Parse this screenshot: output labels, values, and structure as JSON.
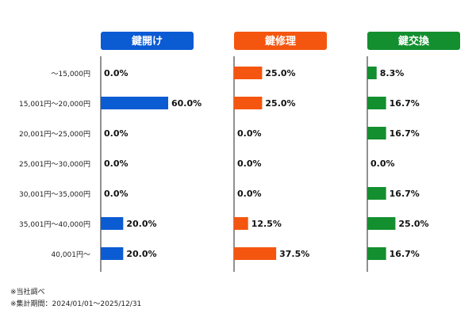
{
  "chart_data": {
    "type": "bar",
    "orientation": "horizontal",
    "layout": "small-multiples",
    "categories": [
      "～15,000円",
      "15,001円～20,000円",
      "20,001円～25,000円",
      "25,001円～30,000円",
      "30,001円～35,000円",
      "35,001円～40,000円",
      "40,001円～"
    ],
    "series": [
      {
        "name": "鍵開け",
        "color": "#0b5bd3",
        "values": [
          0.0,
          60.0,
          0.0,
          0.0,
          0.0,
          20.0,
          20.0
        ]
      },
      {
        "name": "鍵修理",
        "color": "#f4560f",
        "values": [
          25.0,
          25.0,
          0.0,
          0.0,
          0.0,
          12.5,
          37.5
        ]
      },
      {
        "name": "鍵交換",
        "color": "#138f2f",
        "values": [
          8.3,
          16.7,
          16.7,
          0.0,
          16.7,
          25.0,
          16.7
        ]
      }
    ],
    "value_suffix": "%",
    "xlim": [
      0,
      100
    ],
    "grid": false
  },
  "notes": [
    "※当社調べ",
    "※集計期間：2024/01/01～2025/12/31"
  ]
}
